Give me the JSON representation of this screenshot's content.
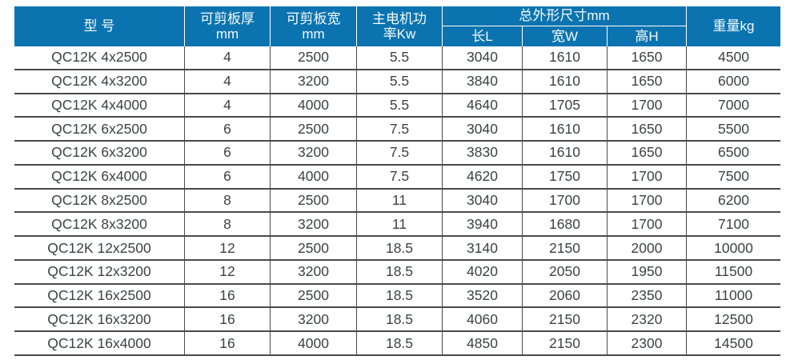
{
  "colors": {
    "header_bg": "#0b74b0",
    "header_text": "#f6fafc",
    "body_text": "#3e4145",
    "grid_line": "#4a4a4a"
  },
  "table": {
    "headers": {
      "model": "型 号",
      "thickness_l1": "可剪板厚",
      "thickness_l2": "mm",
      "width_l1": "可剪板宽",
      "width_l2": "mm",
      "power_l1": "主电机功",
      "power_l2": "率Kw",
      "dimensions": "总外形尺寸mm",
      "dim_length": "长L",
      "dim_width": "宽W",
      "dim_height": "高H",
      "weight": "重量kg"
    },
    "rows": [
      [
        "QC12K 4x2500",
        "4",
        "2500",
        "5.5",
        "3040",
        "1610",
        "1650",
        "4500"
      ],
      [
        "QC12K 4x3200",
        "4",
        "3200",
        "5.5",
        "3840",
        "1610",
        "1650",
        "6000"
      ],
      [
        "QC12K 4x4000",
        "4",
        "4000",
        "5.5",
        "4640",
        "1705",
        "1700",
        "7000"
      ],
      [
        "QC12K 6x2500",
        "6",
        "2500",
        "7.5",
        "3040",
        "1610",
        "1650",
        "5500"
      ],
      [
        "QC12K 6x3200",
        "6",
        "3200",
        "7.5",
        "3830",
        "1610",
        "1650",
        "6500"
      ],
      [
        "QC12K 6x4000",
        "6",
        "4000",
        "7.5",
        "4620",
        "1750",
        "1700",
        "7500"
      ],
      [
        "QC12K 8x2500",
        "8",
        "2500",
        "11",
        "3040",
        "1700",
        "1700",
        "6200"
      ],
      [
        "QC12K 8x3200",
        "8",
        "3200",
        "11",
        "3940",
        "1680",
        "1700",
        "7100"
      ],
      [
        "QC12K 12x2500",
        "12",
        "2500",
        "18.5",
        "3140",
        "2150",
        "2000",
        "10000"
      ],
      [
        "QC12K 12x3200",
        "12",
        "3200",
        "18.5",
        "4020",
        "2050",
        "1950",
        "11500"
      ],
      [
        "QC12K 16x2500",
        "16",
        "2500",
        "18.5",
        "3520",
        "2060",
        "2350",
        "11000"
      ],
      [
        "QC12K 16x3200",
        "16",
        "3200",
        "18.5",
        "4060",
        "2150",
        "2320",
        "12500"
      ],
      [
        "QC12K 16x4000",
        "16",
        "4000",
        "18.5",
        "4850",
        "2150",
        "2300",
        "14500"
      ]
    ]
  }
}
